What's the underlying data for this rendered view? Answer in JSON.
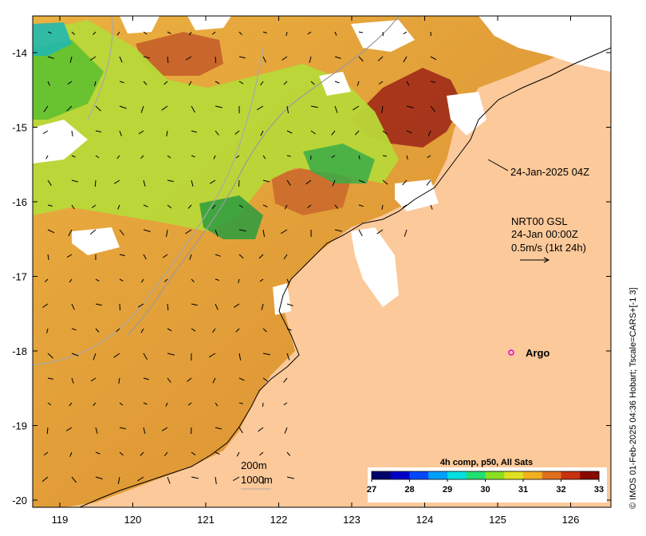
{
  "map": {
    "lon_ticks": [
      "119",
      "120",
      "121",
      "122",
      "123",
      "124",
      "125",
      "126"
    ],
    "lat_ticks": [
      "-14",
      "-15",
      "-16",
      "-17",
      "-18",
      "-19",
      "-20"
    ],
    "sst_colors": {
      "ocean_land": "#fcc99a",
      "warm": "#e8a33a",
      "hot": "#c8642a",
      "hottest": "#8a1a10",
      "yellow": "#d8e030",
      "green": "#7fd030",
      "dark_green": "#2aa040",
      "cyan": "#20b8c8",
      "cloud": "#ffffff"
    }
  },
  "annotations": {
    "timestamp": "24-Jan-2025 04Z",
    "current_label_1": "NRT00 GSL",
    "current_label_2": "24-Jan 00:00Z",
    "current_label_3": "0.5m/s (1kt 24h)",
    "argo_label": "Argo",
    "depth_200": "200m",
    "depth_1000": "1000m"
  },
  "colorbar": {
    "title": "4h comp, p50, All Sats",
    "ticks": [
      "27",
      "28",
      "29",
      "30",
      "31",
      "32",
      "33"
    ],
    "colors": [
      "#00006a",
      "#0000c8",
      "#0048ff",
      "#00a0ff",
      "#00e0e0",
      "#20e070",
      "#8ae020",
      "#e0e020",
      "#f0b020",
      "#e07020",
      "#c83010",
      "#8a0a00"
    ]
  },
  "credit": "© IMOS 01-Feb-2025 04:36 Hobart; Tscale=CARS+[-1 3]"
}
